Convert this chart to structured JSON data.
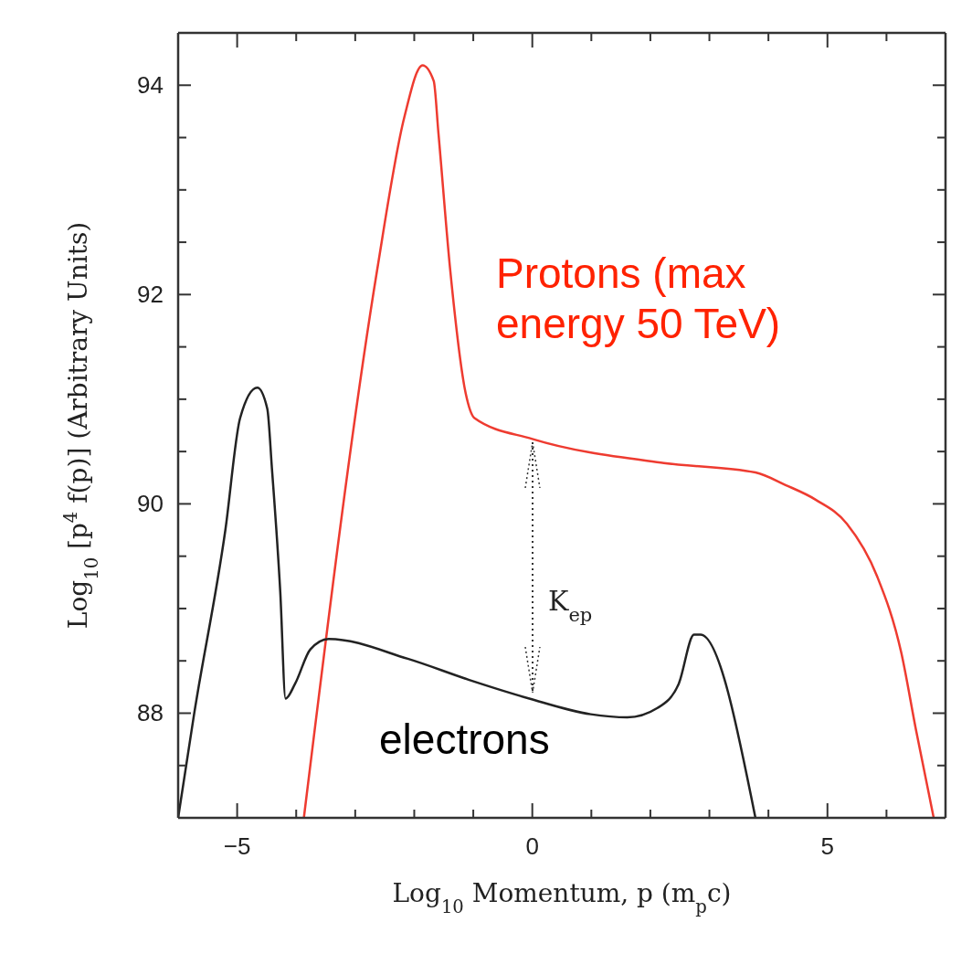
{
  "chart_data": {
    "type": "line",
    "xlabel": "Log$_{10}$ Momentum, p (m$_{p}$c)",
    "ylabel": "Log$_{10}$ [p$^{4}$ f(p)] (Arbitrary Units)",
    "xlim": [
      -6,
      7
    ],
    "ylim": [
      87,
      94.5
    ],
    "xticks": [
      {
        "value": -6,
        "label": null
      },
      -5,
      {
        "value": -4,
        "label": null
      },
      {
        "value": -3,
        "label": null
      },
      {
        "value": -2,
        "label": null
      },
      {
        "value": -1,
        "label": null
      },
      0,
      {
        "value": 1,
        "label": null
      },
      {
        "value": 2,
        "label": null
      },
      {
        "value": 3,
        "label": null
      },
      {
        "value": 4,
        "label": null
      },
      5,
      {
        "value": 6,
        "label": null
      }
    ],
    "yticks": [
      {
        "value": 87,
        "label": null
      },
      {
        "value": 87.5,
        "label": null
      },
      88,
      {
        "value": 88.5,
        "label": null
      },
      {
        "value": 89,
        "label": null
      },
      {
        "value": 89.5,
        "label": null
      },
      90,
      {
        "value": 90.5,
        "label": null
      },
      {
        "value": 91,
        "label": null
      },
      {
        "value": 91.5,
        "label": null
      },
      92,
      {
        "value": 92.5,
        "label": null
      },
      {
        "value": 93,
        "label": null
      },
      {
        "value": 93.5,
        "label": null
      },
      94
    ],
    "grid": false,
    "legend": false,
    "marker": "none",
    "line_style": "solid",
    "series": [
      {
        "name": "Protons (max energy 50 TeV)",
        "color": "#ee3b30",
        "x": [
          -3.87,
          -2.63,
          -2.17,
          -1.86,
          -1.67,
          -1.59,
          -1.39,
          -1.13,
          -0.98,
          0,
          2.23,
          3.78,
          4.29,
          4.8,
          5.33,
          5.84,
          6.25,
          6.5,
          6.8
        ],
        "values": [
          87,
          92.23,
          93.69,
          94.19,
          94.04,
          93.54,
          92.23,
          91.06,
          90.82,
          90.62,
          90.39,
          90.3,
          90.18,
          90.04,
          89.81,
          89.31,
          88.58,
          87.84,
          87
        ]
      },
      {
        "name": "electrons",
        "color": "#222222",
        "x": [
          -6,
          -5.73,
          -5.2,
          -4.95,
          -4.66,
          -4.49,
          -4.41,
          -4.27,
          -4.18,
          -4.02,
          -3.76,
          -3.45,
          -2.11,
          -1.08,
          -0.05,
          0.99,
          1.61,
          2.12,
          2.48,
          2.74,
          2.85,
          3.78
        ],
        "values": [
          87,
          87.99,
          89.75,
          90.82,
          91.11,
          90.91,
          90.33,
          89.16,
          88.14,
          88.28,
          88.61,
          88.71,
          88.52,
          88.32,
          88.14,
          87.99,
          87.96,
          88.05,
          88.28,
          88.75,
          88.75,
          87
        ]
      }
    ],
    "annotations": [
      "K$_{ep}$"
    ]
  }
}
